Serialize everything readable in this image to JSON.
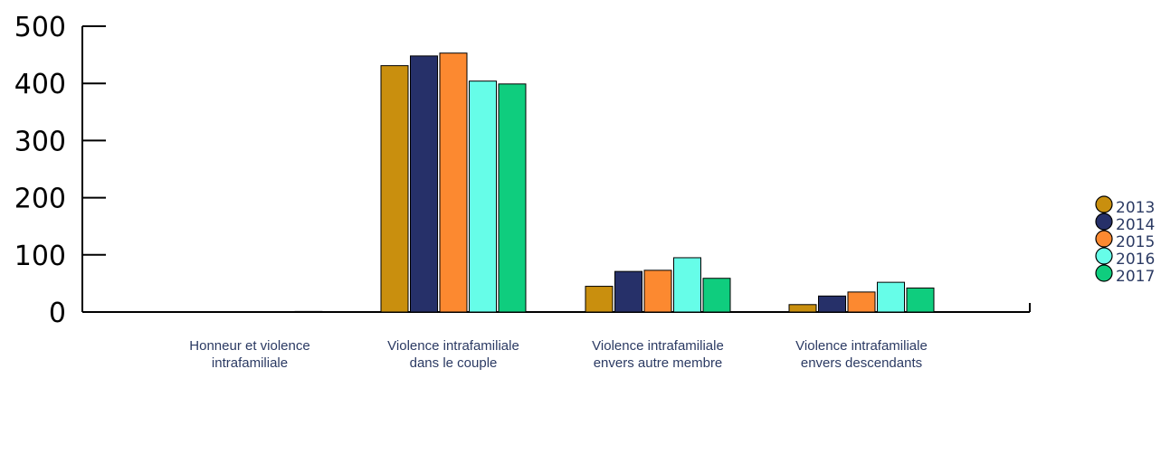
{
  "chart_data": {
    "type": "bar",
    "categories": [
      [
        "Honneur et violence",
        "intrafamiliale"
      ],
      [
        "Violence intrafamiliale",
        "dans le couple"
      ],
      [
        "Violence intrafamiliale",
        "envers autre membre"
      ],
      [
        "Violence intrafamiliale",
        "envers descendants"
      ]
    ],
    "series": [
      {
        "name": "2013",
        "color": "#c98f0e",
        "values": [
          0,
          431,
          45,
          13
        ]
      },
      {
        "name": "2014",
        "color": "#263069",
        "values": [
          0,
          448,
          71,
          28
        ]
      },
      {
        "name": "2015",
        "color": "#fc8930",
        "values": [
          0,
          453,
          73,
          35
        ]
      },
      {
        "name": "2016",
        "color": "#66fde8",
        "values": [
          0,
          404,
          95,
          52
        ]
      },
      {
        "name": "2017",
        "color": "#0fcd7e",
        "values": [
          1,
          399,
          59,
          42
        ]
      }
    ],
    "yticks": [
      "0",
      "100",
      "200",
      "300",
      "400",
      "500"
    ],
    "ylim": [
      0,
      500
    ],
    "grid": false,
    "legend_position": "right"
  }
}
